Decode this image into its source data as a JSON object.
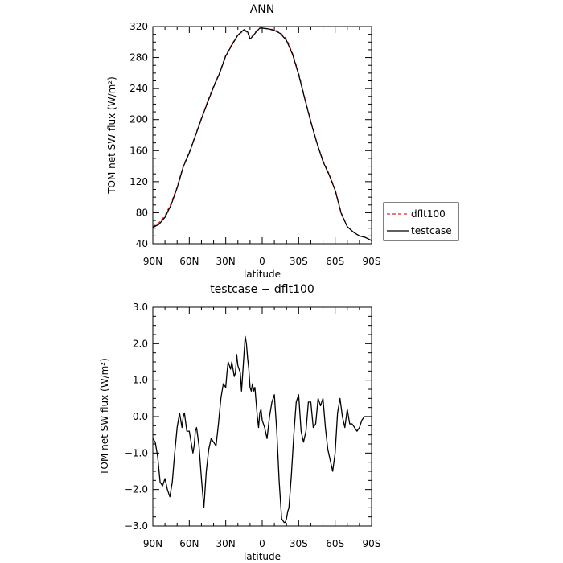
{
  "chart_data": [
    {
      "type": "line",
      "title": "ANN",
      "xlabel": "latitude",
      "ylabel": "TOM net SW flux (W/m²)",
      "xlim": [
        90,
        -90
      ],
      "ylim": [
        40,
        320
      ],
      "x_ticks": [
        90,
        60,
        30,
        0,
        -30,
        -60,
        -90
      ],
      "x_tick_labels": [
        "90N",
        "60N",
        "30N",
        "0",
        "30S",
        "60S",
        "90S"
      ],
      "y_ticks": [
        40,
        80,
        120,
        160,
        200,
        240,
        280,
        320
      ],
      "y_tick_labels": [
        "40",
        "80",
        "120",
        "160",
        "200",
        "240",
        "280",
        "320"
      ],
      "legend": {
        "position": "right",
        "entries": [
          "dflt100",
          "testcase"
        ]
      },
      "series": [
        {
          "name": "dflt100",
          "color": "#d62728",
          "style": "dashed",
          "x": [
            90,
            85,
            80,
            75,
            70,
            65,
            60,
            55,
            50,
            45,
            40,
            35,
            30,
            25,
            20,
            15,
            12,
            10,
            8,
            5,
            2,
            0,
            -5,
            -10,
            -15,
            -20,
            -25,
            -30,
            -35,
            -40,
            -45,
            -50,
            -55,
            -60,
            -65,
            -70,
            -75,
            -80,
            -85,
            -90
          ],
          "y": [
            62,
            67,
            76,
            92,
            113,
            140,
            158,
            180,
            202,
            223,
            243,
            261,
            283,
            297,
            309,
            315,
            312,
            306,
            308,
            314,
            318,
            318,
            317,
            316,
            312,
            304,
            285,
            260,
            228,
            198,
            170,
            147,
            130,
            110,
            80,
            62,
            55,
            50,
            48,
            44
          ]
        },
        {
          "name": "testcase",
          "color": "#000000",
          "style": "solid",
          "x": [
            90,
            85,
            80,
            75,
            70,
            65,
            60,
            55,
            50,
            45,
            40,
            35,
            30,
            25,
            20,
            15,
            12,
            10,
            8,
            5,
            2,
            0,
            -5,
            -10,
            -15,
            -20,
            -25,
            -30,
            -35,
            -40,
            -45,
            -50,
            -55,
            -60,
            -65,
            -70,
            -75,
            -80,
            -85,
            -90
          ],
          "y": [
            61,
            65,
            74,
            90,
            112,
            139,
            157,
            179,
            201,
            222,
            242,
            260,
            282,
            296,
            309,
            316,
            313,
            304,
            307,
            313,
            318,
            318,
            317,
            315,
            311,
            302,
            284,
            258,
            227,
            197,
            170,
            146,
            129,
            109,
            79,
            62,
            55,
            50,
            48,
            44
          ]
        }
      ]
    },
    {
      "type": "line",
      "title": "testcase − dflt100",
      "xlabel": "latitude",
      "ylabel": "TOM net SW flux (W/m²)",
      "xlim": [
        90,
        -90
      ],
      "ylim": [
        -3.0,
        3.0
      ],
      "x_ticks": [
        90,
        60,
        30,
        0,
        -30,
        -60,
        -90
      ],
      "x_tick_labels": [
        "90N",
        "60N",
        "30N",
        "0",
        "30S",
        "60S",
        "90S"
      ],
      "y_ticks": [
        3.0,
        2.0,
        1.0,
        0.0,
        -1.0,
        -2.0,
        -3.0
      ],
      "y_tick_labels": [
        "3.0",
        "2.0",
        "1.0",
        "0.0",
        "−1.0",
        "−2.0",
        "−3.0"
      ],
      "series": [
        {
          "color": "#000000",
          "style": "solid",
          "x": [
            90,
            88,
            86,
            84,
            82,
            80,
            78,
            76,
            74,
            72,
            70,
            68,
            67,
            66,
            65,
            64,
            62,
            60,
            58,
            57,
            56,
            55,
            54,
            52,
            50,
            48,
            46,
            44,
            42,
            40,
            38,
            36,
            34,
            32,
            30,
            29,
            28,
            27,
            26,
            25,
            24,
            23,
            22,
            21,
            20,
            18,
            17,
            16,
            15,
            14,
            13,
            12,
            11,
            10,
            9,
            8,
            7,
            6,
            5,
            4,
            3,
            2,
            1,
            0,
            -2,
            -4,
            -6,
            -8,
            -10,
            -12,
            -14,
            -16,
            -18,
            -19,
            -20,
            -21,
            -22,
            -24,
            -26,
            -28,
            -30,
            -32,
            -34,
            -36,
            -38,
            -40,
            -42,
            -44,
            -46,
            -48,
            -50,
            -52,
            -54,
            -56,
            -58,
            -60,
            -62,
            -64,
            -66,
            -68,
            -70,
            -72,
            -74,
            -76,
            -78,
            -80,
            -82,
            -84,
            -86,
            -88,
            -90
          ],
          "y": [
            -0.6,
            -0.7,
            -1.1,
            -1.8,
            -1.9,
            -1.7,
            -2.0,
            -2.2,
            -1.8,
            -1.0,
            -0.3,
            0.1,
            -0.1,
            -0.3,
            0.0,
            0.1,
            -0.4,
            -0.4,
            -0.8,
            -1.0,
            -0.8,
            -0.4,
            -0.3,
            -0.8,
            -1.7,
            -2.5,
            -1.5,
            -0.9,
            -0.6,
            -0.7,
            -0.8,
            -0.2,
            0.5,
            0.9,
            0.8,
            1.2,
            1.5,
            1.4,
            1.3,
            1.5,
            1.3,
            1.1,
            1.2,
            1.7,
            1.4,
            1.2,
            0.7,
            1.2,
            1.7,
            2.2,
            2.0,
            1.6,
            1.3,
            0.8,
            0.7,
            0.9,
            0.7,
            0.8,
            0.4,
            0.0,
            -0.3,
            0.1,
            0.2,
            -0.1,
            -0.3,
            -0.6,
            0.0,
            0.4,
            0.6,
            -0.4,
            -1.8,
            -2.8,
            -2.9,
            -2.9,
            -2.8,
            -2.6,
            -2.5,
            -1.6,
            -0.5,
            0.4,
            0.6,
            -0.4,
            -0.7,
            -0.4,
            0.4,
            0.4,
            -0.3,
            -0.2,
            0.5,
            0.3,
            0.5,
            -0.3,
            -0.9,
            -1.2,
            -1.5,
            -1.0,
            0.1,
            0.5,
            0.0,
            -0.3,
            0.2,
            -0.2,
            -0.2,
            -0.3,
            -0.4,
            -0.3,
            -0.1,
            0.0,
            0.0,
            0.0,
            0.0
          ]
        }
      ]
    }
  ]
}
